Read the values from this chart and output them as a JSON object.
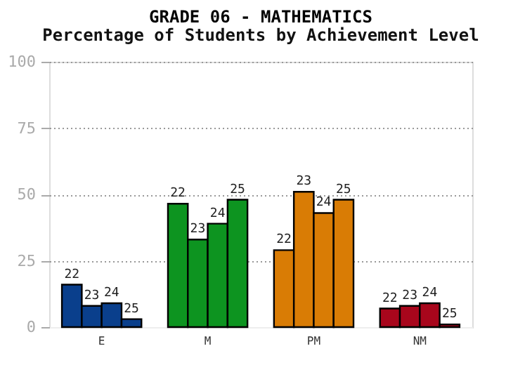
{
  "chart_data": {
    "type": "bar",
    "title": "GRADE 06 - MATHEMATICS",
    "subtitle": "Percentage of Students by Achievement Level",
    "categories": [
      "E",
      "M",
      "PM",
      "NM"
    ],
    "series": [
      {
        "name": "22",
        "colors": [
          "#0a3f8c",
          "#0d9420",
          "#d97c05",
          "#a8061c"
        ],
        "values": [
          16,
          46.5,
          29,
          7
        ]
      },
      {
        "name": "23",
        "colors": [
          "#0a3f8c",
          "#0d9420",
          "#d97c05",
          "#a8061c"
        ],
        "values": [
          8,
          33,
          51,
          8
        ]
      },
      {
        "name": "24",
        "colors": [
          "#0a3f8c",
          "#0d9420",
          "#d97c05",
          "#a8061c"
        ],
        "values": [
          9,
          39,
          43,
          9
        ]
      },
      {
        "name": "25",
        "colors": [
          "#0a3f8c",
          "#0d9420",
          "#d97c05",
          "#a8061c"
        ],
        "values": [
          3,
          48,
          48,
          1
        ]
      }
    ],
    "ylim": [
      0,
      100
    ],
    "yticks": [
      0,
      25,
      50,
      75,
      100
    ],
    "grid": "y",
    "legend": false
  }
}
